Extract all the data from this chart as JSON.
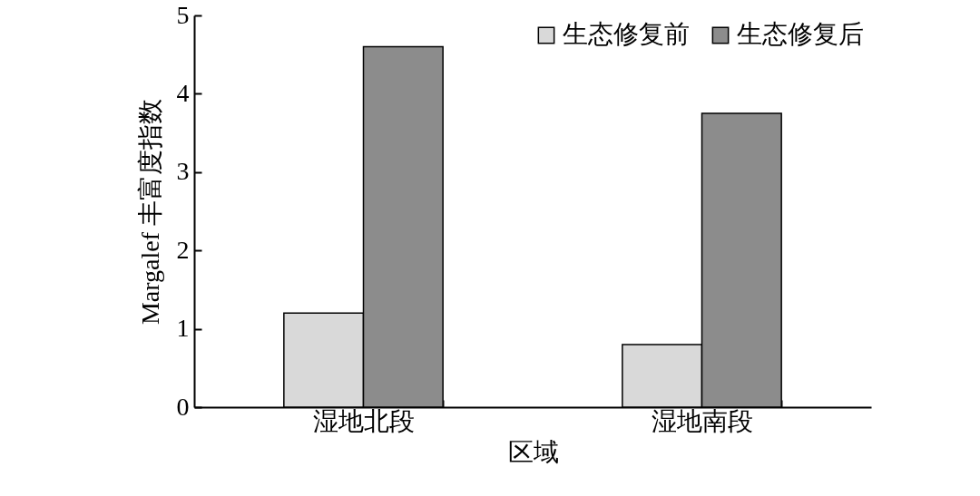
{
  "chart_data": {
    "type": "bar",
    "xlabel": "区域",
    "ylabel": "Margalef 丰富度指数",
    "categories": [
      "湿地北段",
      "湿地南段"
    ],
    "series": [
      {
        "name": "生态修复前",
        "color": "#d9d9d9",
        "values": [
          1.2,
          0.8
        ]
      },
      {
        "name": "生态修复后",
        "color": "#8c8c8c",
        "values": [
          4.6,
          3.75
        ]
      }
    ],
    "ylim": [
      0,
      5
    ],
    "yticks": [
      0,
      1,
      2,
      3,
      4,
      5
    ],
    "grid": false,
    "legend": "top right"
  }
}
